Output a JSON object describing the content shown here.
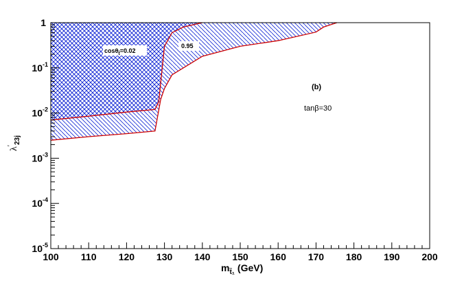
{
  "chart_data": {
    "type": "area",
    "xlabel": "m",
    "xlabel_sub": "t̃₁",
    "xlabel_units": "(GeV)",
    "ylabel": "λ",
    "ylabel_prime": "′",
    "ylabel_sub": "23j",
    "xlim": [
      100,
      200
    ],
    "ylim": [
      1e-05,
      1
    ],
    "yscale": "log",
    "grid": false,
    "x_ticks": [
      100,
      110,
      120,
      130,
      140,
      150,
      160,
      170,
      180,
      190,
      200
    ],
    "x_tick_labels": [
      "100",
      "110",
      "120",
      "130",
      "140",
      "150",
      "160",
      "170",
      "180",
      "190",
      "200"
    ],
    "y_ticks": [
      {
        "value": 1,
        "base": "1",
        "exp": ""
      },
      {
        "value": 0.1,
        "base": "10",
        "exp": "-1"
      },
      {
        "value": 0.01,
        "base": "10",
        "exp": "-2"
      },
      {
        "value": 0.001,
        "base": "10",
        "exp": "-3"
      },
      {
        "value": 0.0001,
        "base": "10",
        "exp": "-4"
      },
      {
        "value": 1e-05,
        "base": "10",
        "exp": "-5"
      }
    ],
    "series": [
      {
        "label_prefix": "cosθ",
        "label_sub": "t̃",
        "label_suffix": "=0.02",
        "label_at": {
          "x": 117,
          "y": 0.3
        },
        "color": "#cc0000",
        "hatch_color": "#1a2ed6",
        "hatch": "crosshatch",
        "x": [
          100,
          110,
          120,
          127.5,
          128.5,
          130,
          132,
          135,
          140
        ],
        "y": [
          0.007,
          0.0085,
          0.0105,
          0.012,
          0.018,
          0.3,
          0.6,
          0.8,
          1.0
        ]
      },
      {
        "label": "0.95",
        "label_at": {
          "x": 135.5,
          "y": 0.33
        },
        "color": "#cc0000",
        "hatch_color": "#1a2ed6",
        "hatch": "single",
        "x": [
          100,
          110,
          120,
          127.5,
          129,
          130,
          132,
          135,
          140,
          150,
          160,
          170,
          172,
          175.5
        ],
        "y": [
          0.0025,
          0.003,
          0.0035,
          0.004,
          0.02,
          0.035,
          0.07,
          0.1,
          0.18,
          0.3,
          0.4,
          0.62,
          0.8,
          1.0
        ]
      }
    ],
    "annotations": [
      {
        "text": "(b)",
        "x": 167,
        "y": 0.045,
        "bold": true
      },
      {
        "text_prefix": "tan",
        "text_symbol": "β",
        "text_suffix": "=30",
        "x": 168,
        "y": 0.013
      }
    ]
  }
}
